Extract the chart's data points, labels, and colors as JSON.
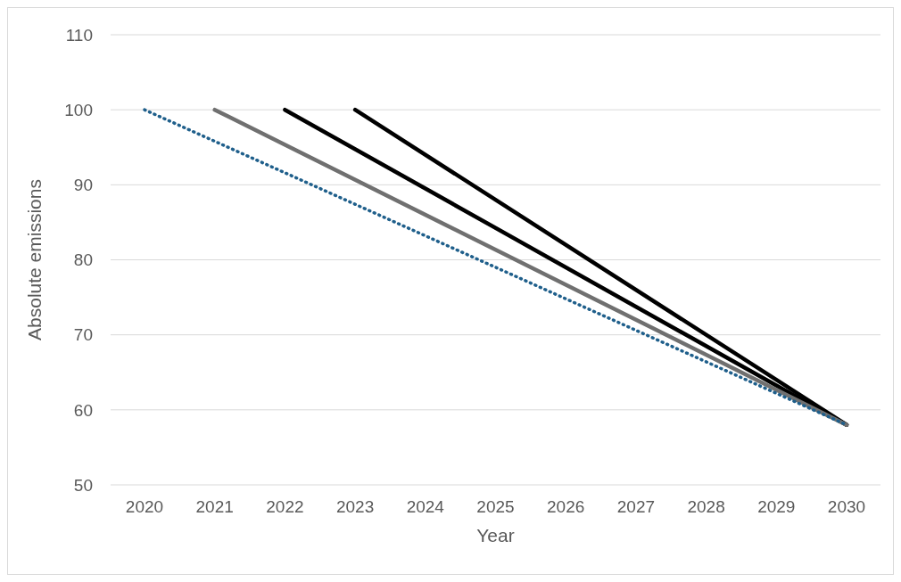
{
  "chart_data": {
    "type": "line",
    "xlabel": "Year",
    "ylabel": "Absolute emissions",
    "categories": [
      "2020",
      "2021",
      "2022",
      "2023",
      "2024",
      "2025",
      "2026",
      "2027",
      "2028",
      "2029",
      "2030"
    ],
    "series": [
      {
        "color": "#1f5f8b",
        "line_style": "dotted",
        "values": [
          100,
          null,
          null,
          null,
          null,
          null,
          null,
          null,
          null,
          null,
          58
        ]
      },
      {
        "color": "#707070",
        "values": [
          null,
          100,
          null,
          null,
          null,
          null,
          null,
          null,
          null,
          null,
          58
        ]
      },
      {
        "color": "#000000",
        "values": [
          null,
          null,
          100,
          null,
          null,
          null,
          null,
          null,
          null,
          null,
          58
        ]
      },
      {
        "color": "#000000",
        "values": [
          null,
          null,
          null,
          100,
          null,
          null,
          null,
          null,
          null,
          null,
          58
        ]
      }
    ],
    "ylim": [
      50,
      110
    ],
    "yticks": [
      50,
      60,
      70,
      80,
      90,
      100,
      110
    ],
    "grid": "y",
    "legend": false,
    "marker": "none",
    "line_style": "solid"
  }
}
